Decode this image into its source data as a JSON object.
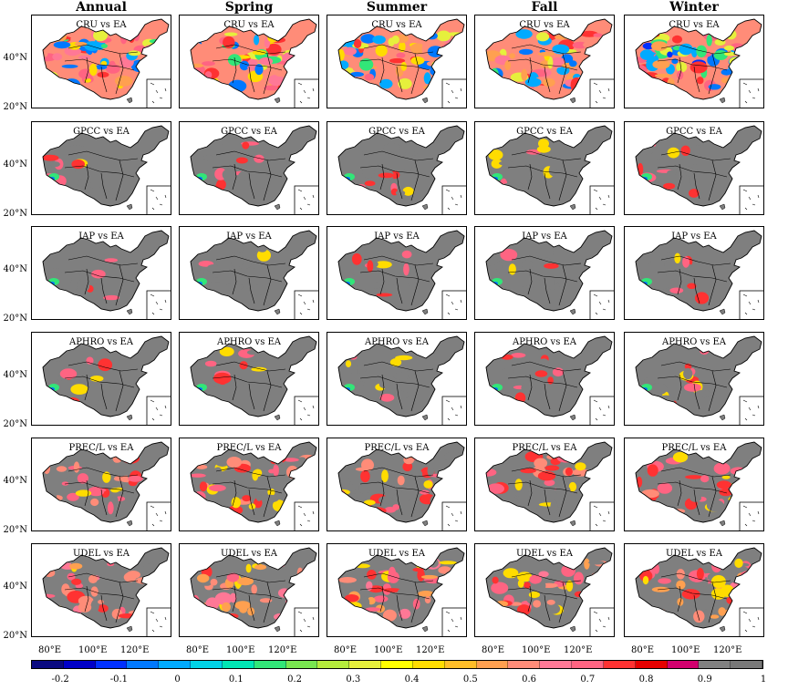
{
  "seasons": [
    "Annual",
    "Spring",
    "Summer",
    "Fall",
    "Winter"
  ],
  "rows": [
    {
      "label": "CRU vs EA",
      "dominant": "correlation field (mixed)"
    },
    {
      "label": "GPCC vs EA",
      "dominant": "mostly 1"
    },
    {
      "label": "IAP vs EA",
      "dominant": "mostly 1"
    },
    {
      "label": "APHRO vs EA",
      "dominant": "mostly 1 in east, mixed in west"
    },
    {
      "label": "PREC/L vs EA",
      "dominant": "mostly 0.9–1"
    },
    {
      "label": "UDEL vs EA",
      "dominant": "mostly 0.8–1"
    }
  ],
  "lat_labels": [
    "40°N",
    "20°N"
  ],
  "lon_labels": [
    "80°E",
    "100°E",
    "120°E"
  ],
  "colorbar": {
    "tick_labels": [
      "-0.2",
      "-0.1",
      "0",
      "0.1",
      "0.2",
      "0.3",
      "0.4",
      "0.5",
      "0.6",
      "0.7",
      "0.8",
      "0.9",
      "1"
    ],
    "colors": [
      "#0a0a80",
      "#0000c8",
      "#0030ff",
      "#0078ff",
      "#00aaff",
      "#00d2e6",
      "#00e6b4",
      "#32e678",
      "#78e650",
      "#b4eb3c",
      "#e6f03c",
      "#ffff00",
      "#ffdc00",
      "#ffbe28",
      "#ffa050",
      "#ff8c78",
      "#ff7896",
      "#ff6482",
      "#ff3232",
      "#e60000",
      "#d2006e",
      "#808080",
      "#787878"
    ],
    "range": [
      -0.25,
      1.0
    ]
  },
  "colors": {
    "china_fill": "#7f7f7f",
    "border": "#000000"
  }
}
